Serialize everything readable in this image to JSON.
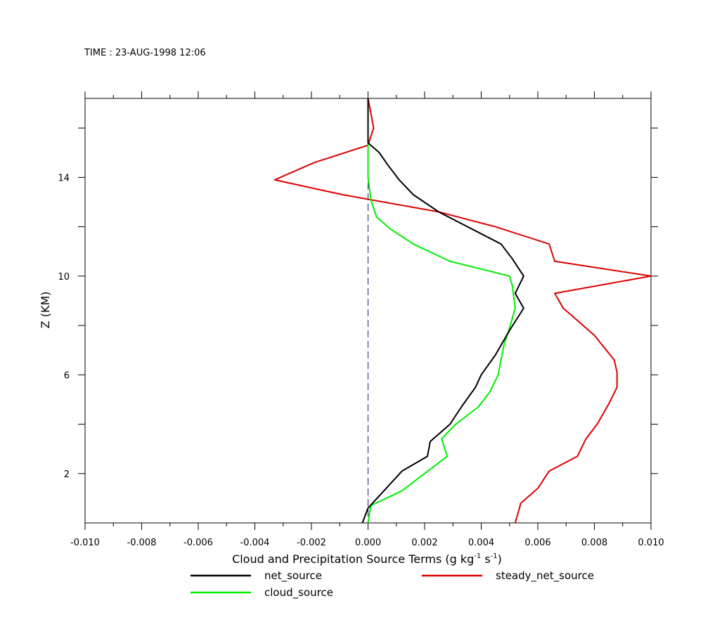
{
  "header": {
    "time_label": "TIME : 23-AUG-1998 12:06"
  },
  "chart_data": {
    "type": "line",
    "title": "",
    "xlabel_main": "Cloud and Precipitation Source Terms (g kg",
    "xlabel_sup1": "-1",
    "xlabel_mid": " s",
    "xlabel_sup2": "-1",
    "xlabel_end": ")",
    "ylabel": "Z (KM)",
    "xlim": [
      -0.01,
      0.01
    ],
    "ylim": [
      0,
      17.2
    ],
    "x_ticks": [
      -0.01,
      -0.008,
      -0.006,
      -0.004,
      -0.002,
      0.0,
      0.002,
      0.004,
      0.006,
      0.008,
      0.01
    ],
    "x_tick_labels": [
      "-0.010",
      "-0.008",
      "-0.006",
      "-0.004",
      "-0.002",
      "0.000",
      "0.002",
      "0.004",
      "0.006",
      "0.008",
      "0.010"
    ],
    "y_ticks": [
      2,
      6,
      10,
      14
    ],
    "y_tick_labels": [
      "2",
      "6",
      "10",
      "14"
    ],
    "reference_line": {
      "x": 0.0,
      "style": "dashed",
      "color": "#1a1a7a"
    },
    "series": [
      {
        "name": "net_source",
        "color": "#000000",
        "points": [
          [
            -0.0002,
            0.0
          ],
          [
            0.0,
            0.6
          ],
          [
            0.0012,
            2.1
          ],
          [
            0.0021,
            2.7
          ],
          [
            0.0022,
            3.3
          ],
          [
            0.0029,
            4.0
          ],
          [
            0.0033,
            4.7
          ],
          [
            0.0038,
            5.5
          ],
          [
            0.004,
            6.0
          ],
          [
            0.0045,
            6.8
          ],
          [
            0.005,
            7.8
          ],
          [
            0.0055,
            8.7
          ],
          [
            0.0052,
            9.3
          ],
          [
            0.0055,
            10.0
          ],
          [
            0.0051,
            10.7
          ],
          [
            0.0047,
            11.3
          ],
          [
            0.0025,
            12.6
          ],
          [
            0.0016,
            13.3
          ],
          [
            0.0011,
            13.9
          ],
          [
            0.0007,
            14.5
          ],
          [
            0.0004,
            15.0
          ],
          [
            0.0,
            15.4
          ],
          [
            0.0,
            17.2
          ]
        ]
      },
      {
        "name": "cloud_source",
        "color": "#00ee00",
        "points": [
          [
            0.0,
            0.0
          ],
          [
            0.0001,
            0.7
          ],
          [
            0.0012,
            1.3
          ],
          [
            0.0028,
            2.7
          ],
          [
            0.0026,
            3.4
          ],
          [
            0.0031,
            4.0
          ],
          [
            0.0039,
            4.7
          ],
          [
            0.0043,
            5.3
          ],
          [
            0.0046,
            6.0
          ],
          [
            0.0048,
            7.2
          ],
          [
            0.005,
            7.9
          ],
          [
            0.0052,
            8.7
          ],
          [
            0.0051,
            9.6
          ],
          [
            0.005,
            10.0
          ],
          [
            0.0029,
            10.6
          ],
          [
            0.0016,
            11.3
          ],
          [
            0.0008,
            11.9
          ],
          [
            0.0003,
            12.4
          ],
          [
            0.0001,
            13.1
          ],
          [
            0.0,
            14.0
          ],
          [
            0.0,
            15.6
          ],
          [
            0.0,
            17.2
          ]
        ]
      },
      {
        "name": "steady_net_source",
        "color": "#dd0000",
        "points": [
          [
            0.0052,
            0.0
          ],
          [
            0.0054,
            0.8
          ],
          [
            0.006,
            1.4
          ],
          [
            0.0064,
            2.1
          ],
          [
            0.0074,
            2.7
          ],
          [
            0.0077,
            3.4
          ],
          [
            0.0081,
            4.0
          ],
          [
            0.0085,
            4.8
          ],
          [
            0.0088,
            5.5
          ],
          [
            0.0088,
            6.1
          ],
          [
            0.0087,
            6.6
          ],
          [
            0.008,
            7.6
          ],
          [
            0.0073,
            8.3
          ],
          [
            0.0069,
            8.7
          ],
          [
            0.0066,
            9.3
          ],
          [
            0.01,
            10.0
          ],
          [
            0.0066,
            10.6
          ],
          [
            0.0064,
            11.3
          ],
          [
            0.0045,
            12.0
          ],
          [
            0.0025,
            12.6
          ],
          [
            -0.0009,
            13.3
          ],
          [
            -0.0033,
            13.9
          ],
          [
            -0.0019,
            14.6
          ],
          [
            0.0,
            15.3
          ],
          [
            0.0002,
            16.0
          ],
          [
            0.0001,
            16.6
          ],
          [
            0.0,
            17.2
          ]
        ]
      }
    ],
    "legend": {
      "placement": "bottom",
      "entries": [
        {
          "label": "net_source",
          "color": "#000000"
        },
        {
          "label": "steady_net_source",
          "color": "#dd0000"
        },
        {
          "label": "cloud_source",
          "color": "#00ee00"
        }
      ]
    }
  }
}
